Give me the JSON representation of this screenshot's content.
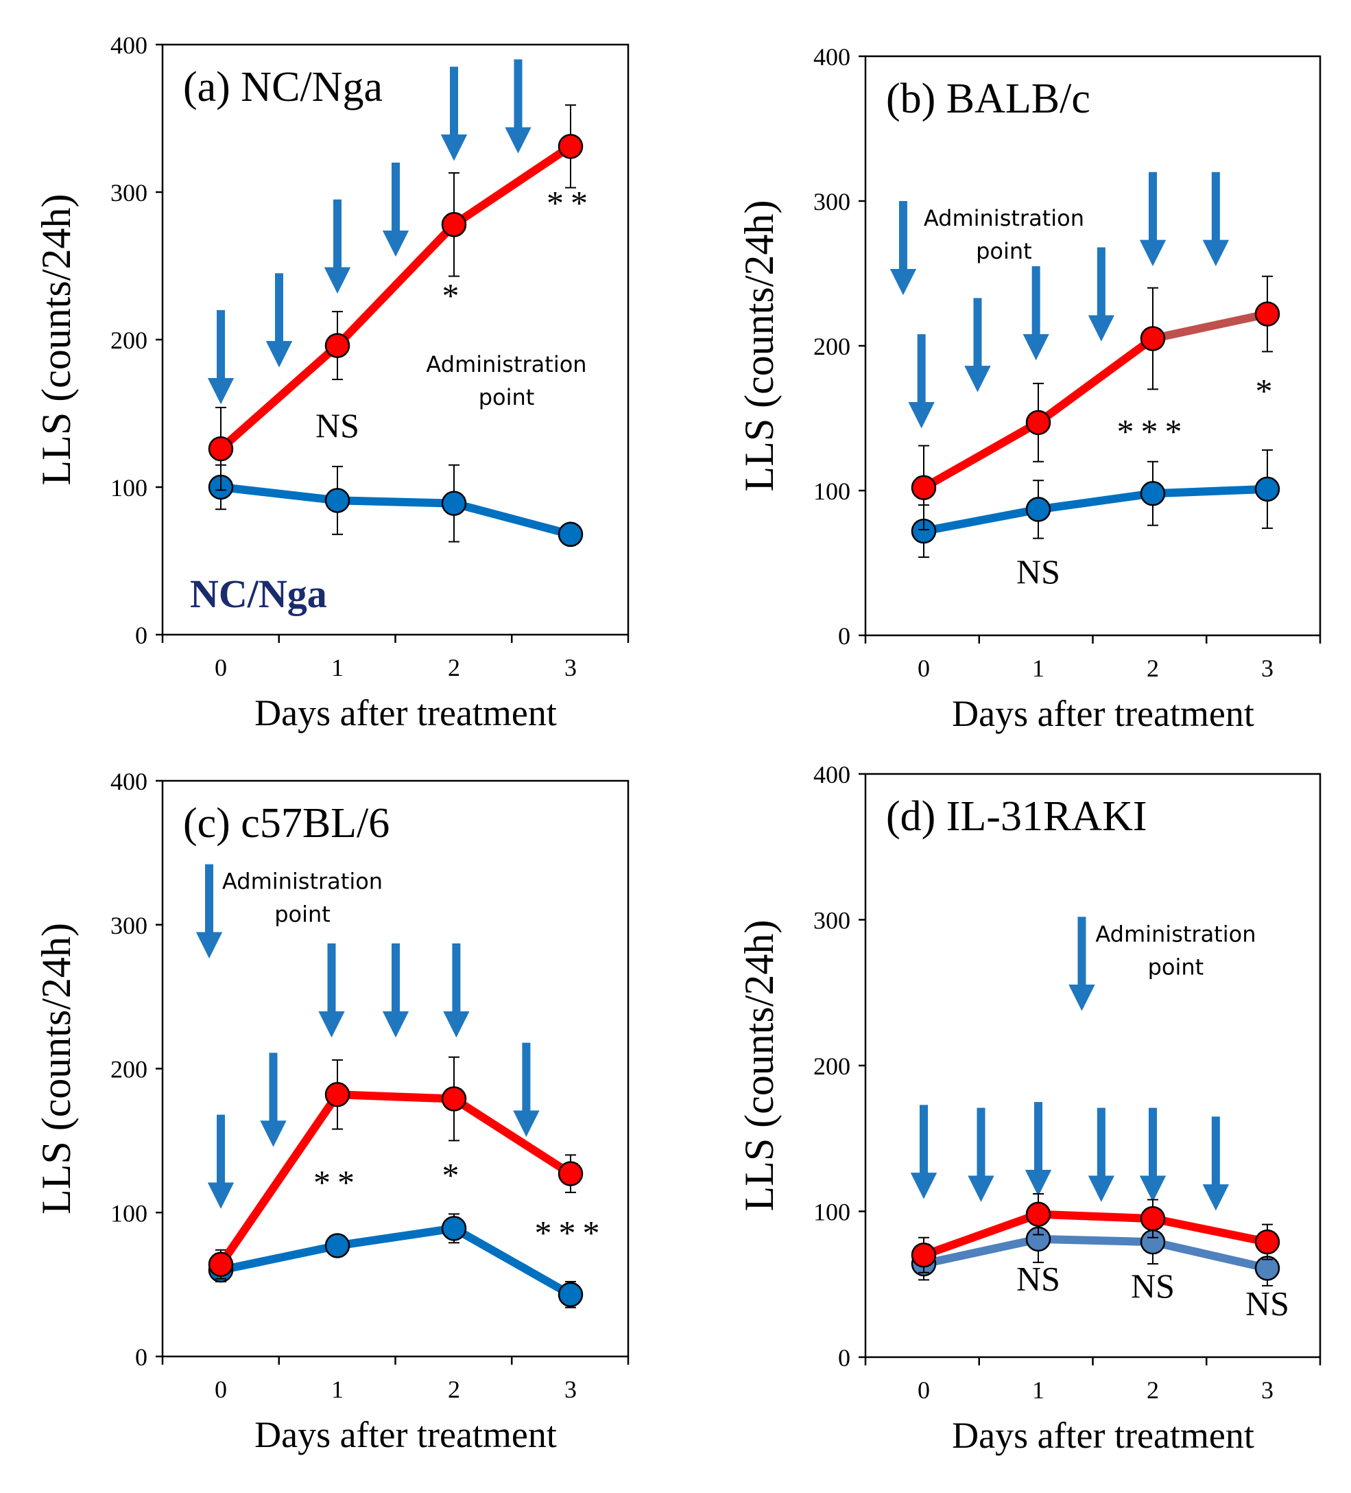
{
  "chart_data": [
    {
      "panel": "a",
      "type": "line",
      "title": "(a) NC/Nga",
      "xlabel": "Days after treatment",
      "ylabel": "LLS (counts/24h)",
      "x": [
        0,
        1,
        2,
        3
      ],
      "x_tick_labels": [
        "0",
        "1",
        "2",
        "3"
      ],
      "ylim": [
        0,
        400
      ],
      "y_ticks": [
        0,
        100,
        200,
        300,
        400
      ],
      "y_tick_labels": [
        "0",
        "100",
        "200",
        "300",
        "400"
      ],
      "series": [
        {
          "name": "red",
          "color": "#ff0000",
          "values": [
            126,
            196,
            278,
            331
          ],
          "errors": [
            28,
            23,
            35,
            28
          ]
        },
        {
          "name": "blue",
          "color": "#0070c0",
          "values": [
            100,
            91,
            89,
            68
          ],
          "errors": [
            15,
            23,
            26,
            0
          ]
        }
      ],
      "significance": [
        {
          "x": 1,
          "y": 134,
          "text": "NS"
        },
        {
          "x": 2,
          "y": 222,
          "text": "*"
        },
        {
          "x": 3,
          "y": 285,
          "text": "**"
        }
      ],
      "arrows_x": [
        0,
        0.5,
        1,
        1.5,
        2,
        2.55
      ],
      "arrows_top_y": [
        220,
        245,
        295,
        320,
        385,
        390
      ],
      "legend_label": "Administration point",
      "legend_lines": [
        "Administration",
        "point"
      ],
      "legend_x": 1.6,
      "legend_top_y": 195,
      "legend_text_x": 2.45,
      "strain_label": "NC/Nga",
      "strain_color": "#1a2c6b"
    },
    {
      "panel": "b",
      "type": "line",
      "title": "(b) BALB/c",
      "xlabel": "Days after treatment",
      "ylabel": "LLS (counts/24h)",
      "x": [
        0,
        1,
        2,
        3
      ],
      "x_tick_labels": [
        "0",
        "1",
        "2",
        "3"
      ],
      "ylim": [
        0,
        400
      ],
      "y_ticks": [
        0,
        100,
        200,
        300,
        400
      ],
      "y_tick_labels": [
        "0",
        "100",
        "200",
        "300",
        "400"
      ],
      "series": [
        {
          "name": "red",
          "color": "#ff0000",
          "segment_colors": [
            "#ff0000",
            "#ff0000",
            "#c0504d"
          ],
          "values": [
            102,
            147,
            205,
            222
          ],
          "errors": [
            29,
            27,
            35,
            26
          ]
        },
        {
          "name": "blue",
          "color": "#0070c0",
          "values": [
            72,
            87,
            98,
            101
          ],
          "errors": [
            18,
            20,
            22,
            27
          ]
        }
      ],
      "significance": [
        {
          "x": 1,
          "y": 36,
          "text": "NS"
        },
        {
          "x": 2,
          "y": 133,
          "text": "***"
        },
        {
          "x": 3,
          "y": 161,
          "text": "*"
        }
      ],
      "arrows_x": [
        -0.18,
        -0.02,
        0.47,
        0.98,
        1.55,
        2.0,
        2.55
      ],
      "arrows_top_y": [
        300,
        208,
        233,
        255,
        268,
        320,
        320
      ],
      "legend_label": "Administration point",
      "legend_lines": [
        "Administration",
        "point"
      ],
      "legend_x": -0.18,
      "legend_top_y": 300,
      "legend_text_x": 0.7,
      "strain_label": "",
      "strain_color": "#1a2c6b"
    },
    {
      "panel": "c",
      "type": "line",
      "title": "(c) c57BL/6",
      "xlabel": "Days after treatment",
      "ylabel": "LLS (counts/24h)",
      "x": [
        0,
        1,
        2,
        3
      ],
      "x_tick_labels": [
        "0",
        "1",
        "2",
        "3"
      ],
      "ylim": [
        0,
        400
      ],
      "y_ticks": [
        0,
        100,
        200,
        300,
        400
      ],
      "y_tick_labels": [
        "0",
        "100",
        "200",
        "300",
        "400"
      ],
      "series": [
        {
          "name": "red",
          "color": "#ff0000",
          "values": [
            64,
            182,
            179,
            127
          ],
          "errors": [
            10,
            24,
            29,
            13
          ]
        },
        {
          "name": "blue",
          "color": "#0070c0",
          "values": [
            60,
            77,
            89,
            43
          ],
          "errors": [
            8,
            6,
            10,
            9
          ]
        }
      ],
      "significance": [
        {
          "x": 1,
          "y": 113,
          "text": "**"
        },
        {
          "x": 2,
          "y": 118,
          "text": "*"
        },
        {
          "x": 3,
          "y": 78,
          "text": "***"
        }
      ],
      "arrows_x": [
        -0.1,
        0.0,
        0.45,
        0.95,
        1.5,
        2.02,
        2.62
      ],
      "arrows_top_y": [
        342,
        168,
        211,
        287,
        287,
        287,
        218
      ],
      "legend_label": "Administration point",
      "legend_lines": [
        "Administration",
        "point"
      ],
      "legend_x": -0.1,
      "legend_top_y": 342,
      "legend_text_x": 0.7,
      "strain_label": "",
      "strain_color": "#1a2c6b"
    },
    {
      "panel": "d",
      "type": "line",
      "title": "(d) IL-31RAKI",
      "xlabel": "Days after treatment",
      "ylabel": "LLS (counts/24h)",
      "x": [
        0,
        1,
        2,
        3
      ],
      "x_tick_labels": [
        "0",
        "1",
        "2",
        "3"
      ],
      "ylim": [
        0,
        400
      ],
      "y_ticks": [
        0,
        100,
        200,
        300,
        400
      ],
      "y_tick_labels": [
        "0",
        "100",
        "200",
        "300",
        "400"
      ],
      "series": [
        {
          "name": "red",
          "color": "#ff0000",
          "values": [
            70,
            98,
            95,
            79
          ],
          "errors": [
            12,
            14,
            13,
            12
          ]
        },
        {
          "name": "blue",
          "color": "#4f81bd",
          "values": [
            64,
            81,
            79,
            61
          ],
          "errors": [
            11,
            16,
            15,
            12
          ]
        }
      ],
      "significance": [
        {
          "x": 1,
          "y": 46,
          "text": "NS"
        },
        {
          "x": 2,
          "y": 41,
          "text": "NS"
        },
        {
          "x": 3,
          "y": 29,
          "text": "NS"
        }
      ],
      "arrows_x": [
        1.38,
        0.0,
        0.5,
        1.0,
        1.55,
        2.0,
        2.55
      ],
      "arrows_top_y": [
        302,
        173,
        171,
        175,
        171,
        171,
        165
      ],
      "legend_label": "Administration point",
      "legend_lines": [
        "Administration",
        "point"
      ],
      "legend_x": 1.38,
      "legend_top_y": 302,
      "legend_text_x": 2.2,
      "strain_label": "",
      "strain_color": "#1a2c6b"
    }
  ],
  "colors": {
    "arrow": "#1f77c0",
    "marker_outline": "#000000",
    "axis": "#000000"
  }
}
